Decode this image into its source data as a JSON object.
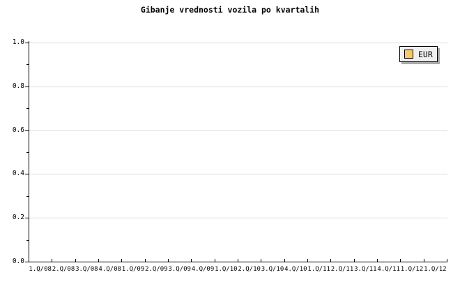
{
  "title": "Gibanje vrednosti vozila po kvartalih",
  "colors": {
    "background": "#ffffff",
    "axis": "#000000",
    "grid": "#dcdcdc",
    "legend_bg": "#f0f0f0",
    "legend_shadow": "#a9a9a9",
    "series_eur": "#f8c96a"
  },
  "legend": {
    "position": "top-right",
    "items": [
      {
        "label": "EUR",
        "swatch_color": "#f8c96a"
      }
    ]
  },
  "chart_data": {
    "type": "line",
    "title": "Gibanje vrednosti vozila po kvartalih",
    "xlabel": "",
    "ylabel": "",
    "x_categories": [
      "1.Q/08",
      "2.Q/08",
      "3.Q/08",
      "4.Q/08",
      "1.Q/09",
      "2.Q/09",
      "3.Q/09",
      "4.Q/09",
      "1.Q/10",
      "2.Q/10",
      "3.Q/10",
      "4.Q/10",
      "1.Q/11",
      "2.Q/11",
      "3.Q/11",
      "4.Q/11",
      "1.Q/12",
      "1.Q/12"
    ],
    "ylim": [
      0.0,
      1.0
    ],
    "y_ticks": [
      0.0,
      0.2,
      0.4,
      0.6,
      0.8,
      1.0
    ],
    "y_tick_labels": [
      "0.0",
      "0.2",
      "0.4",
      "0.6",
      "0.8",
      "1.0"
    ],
    "y_minor_tick_step": 0.1,
    "grid": "horizontal-major",
    "legend_position": "top-right",
    "series": [
      {
        "name": "EUR",
        "color": "#f8c96a",
        "values": []
      }
    ]
  }
}
